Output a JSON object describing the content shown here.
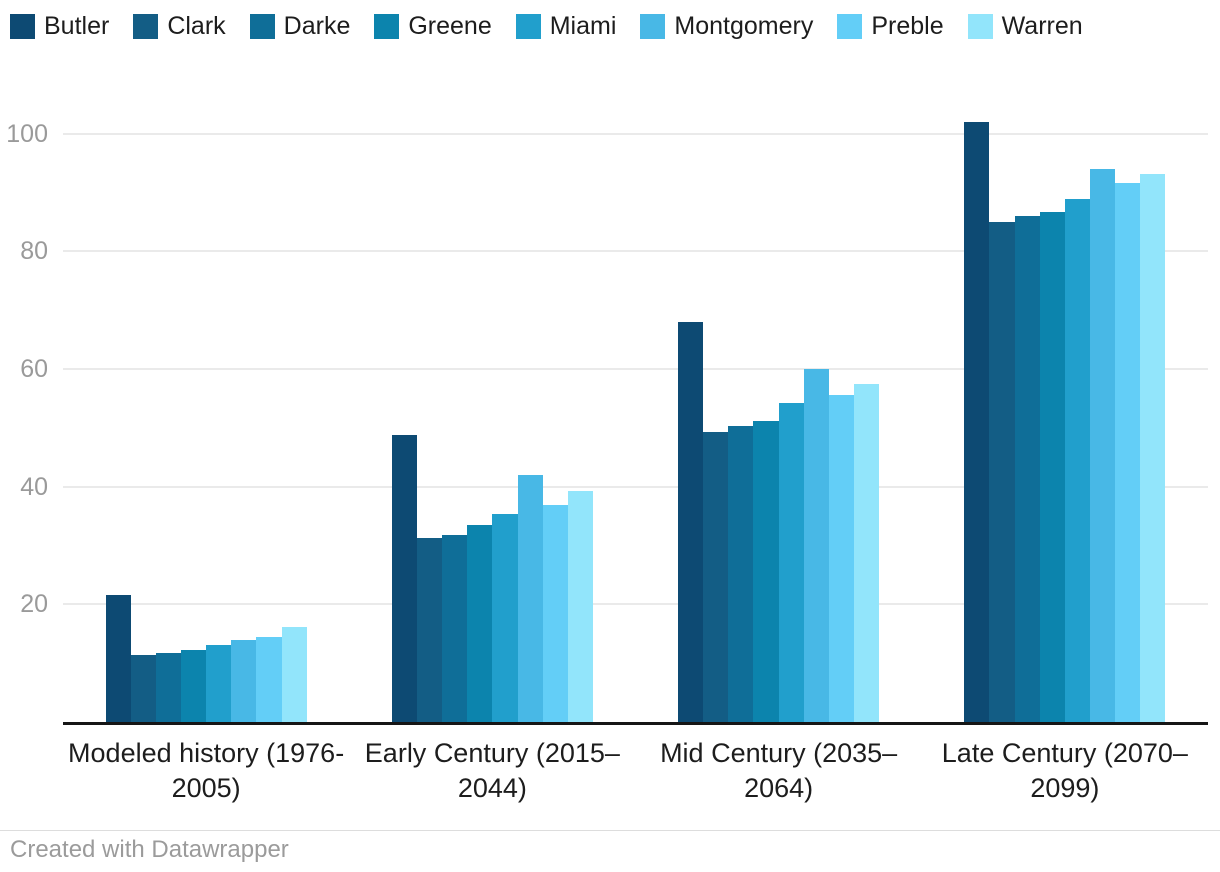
{
  "footer": {
    "credit": "Created with Datawrapper"
  },
  "chart_data": {
    "type": "bar",
    "grouped": true,
    "title": "",
    "xlabel": "",
    "ylabel": "",
    "grid": true,
    "legend_position": "top",
    "ylim": [
      0,
      103
    ],
    "yticks": [
      20,
      40,
      60,
      80,
      100
    ],
    "categories": [
      "Modeled history (1976-2005)",
      "Early Century (2015–2044)",
      "Mid Century (2035–2064)",
      "Late Century (2070–2099)"
    ],
    "series": [
      {
        "name": "Butler",
        "color": "#0d4a73",
        "values": [
          21.5,
          48.7,
          68.0,
          102.0
        ]
      },
      {
        "name": "Clark",
        "color": "#135d85",
        "values": [
          11.3,
          31.2,
          49.2,
          85.0
        ]
      },
      {
        "name": "Darke",
        "color": "#0f6e98",
        "values": [
          11.7,
          31.8,
          50.3,
          86.0
        ]
      },
      {
        "name": "Greene",
        "color": "#0c84ad",
        "values": [
          12.2,
          33.4,
          51.2,
          86.7
        ]
      },
      {
        "name": "Miami",
        "color": "#219fcc",
        "values": [
          13.1,
          35.3,
          54.2,
          88.8
        ]
      },
      {
        "name": "Montgomery",
        "color": "#48b8e6",
        "values": [
          13.9,
          42.0,
          60.0,
          93.9
        ]
      },
      {
        "name": "Preble",
        "color": "#63cef7",
        "values": [
          14.5,
          36.9,
          55.6,
          91.6
        ]
      },
      {
        "name": "Warren",
        "color": "#92e5fb",
        "values": [
          16.2,
          39.2,
          57.5,
          93.2
        ]
      }
    ]
  }
}
